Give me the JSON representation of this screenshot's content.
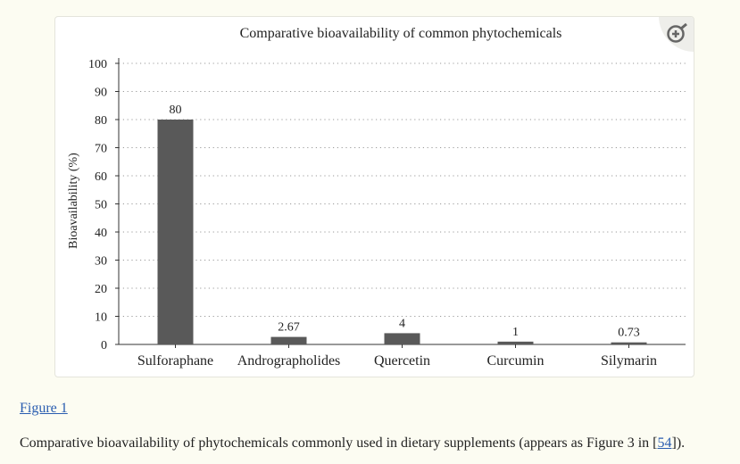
{
  "figure": {
    "link_label": "Figure 1",
    "caption_before": "Comparative bioavailability of phytochemicals commonly used in dietary supplements (appears as Figure 3 in [",
    "caption_ref": "54",
    "caption_after": "])."
  },
  "zoom_icon": "zoom-in-magnifier-icon",
  "colors": {
    "bar": "#595959",
    "grid": "#9a9a9a",
    "axis": "#333333",
    "accent_link": "#2a5db0"
  },
  "chart_data": {
    "type": "bar",
    "title": "Comparative bioavailability of common phytochemicals",
    "xlabel": "",
    "ylabel": "Bioavailability (%)",
    "categories": [
      "Sulforaphane",
      "Andrographolides",
      "Quercetin",
      "Curcumin",
      "Silymarin"
    ],
    "values": [
      80,
      2.67,
      4,
      1,
      0.73
    ],
    "data_labels": [
      "80",
      "2.67",
      "4",
      "1",
      "0.73"
    ],
    "ylim": [
      0,
      100
    ],
    "yticks": [
      0,
      10,
      20,
      30,
      40,
      50,
      60,
      70,
      80,
      90,
      100
    ],
    "grid": true,
    "legend": "none"
  }
}
